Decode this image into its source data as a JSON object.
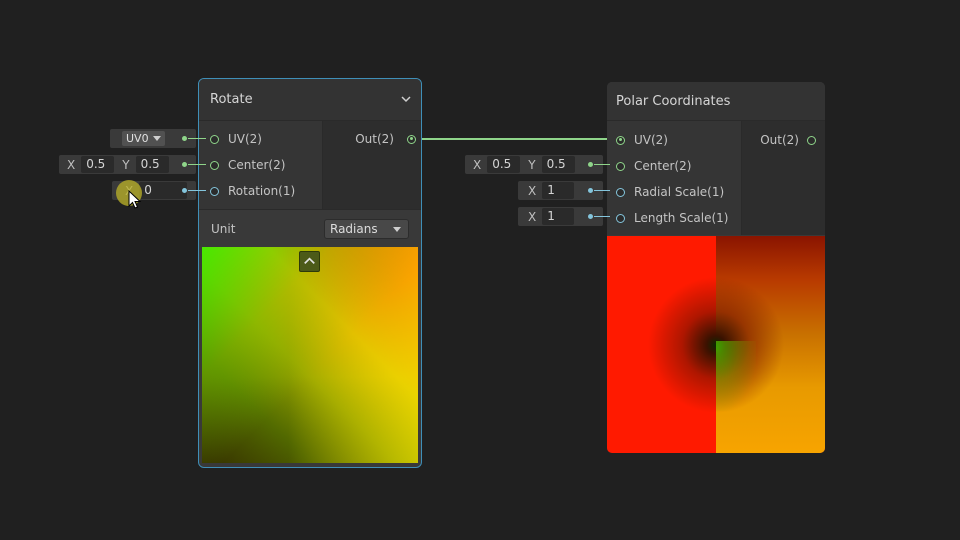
{
  "rotate_node": {
    "title": "Rotate",
    "inputs": [
      "UV(2)",
      "Center(2)",
      "Rotation(1)"
    ],
    "outputs": [
      "Out(2)"
    ],
    "unit_label": "Unit",
    "unit_value": "Radians"
  },
  "rotate_inputs": {
    "uv_channel": "UV0",
    "center_x_label": "X",
    "center_x": "0.5",
    "center_y_label": "Y",
    "center_y": "0.5",
    "rotation_label": "X",
    "rotation": "0"
  },
  "polar_node": {
    "title": "Polar Coordinates",
    "inputs": [
      "UV(2)",
      "Center(2)",
      "Radial Scale(1)",
      "Length Scale(1)"
    ],
    "outputs": [
      "Out(2)"
    ]
  },
  "polar_inputs": {
    "center_x_label": "X",
    "center_x": "0.5",
    "center_y_label": "Y",
    "center_y": "0.5",
    "radial_label": "X",
    "radial_scale": "1",
    "length_label": "X",
    "length_scale": "1"
  },
  "colors": {
    "background": "#202020",
    "edge": "#8fd58a",
    "selection": "#3f8fb8",
    "port_blue": "#84c5dc"
  },
  "icons": {
    "collapse": "chevron-down-icon",
    "preview_toggle": "chevron-up-icon",
    "dropdown": "triangle-down-icon",
    "cursor": "pointer-cursor-icon"
  }
}
